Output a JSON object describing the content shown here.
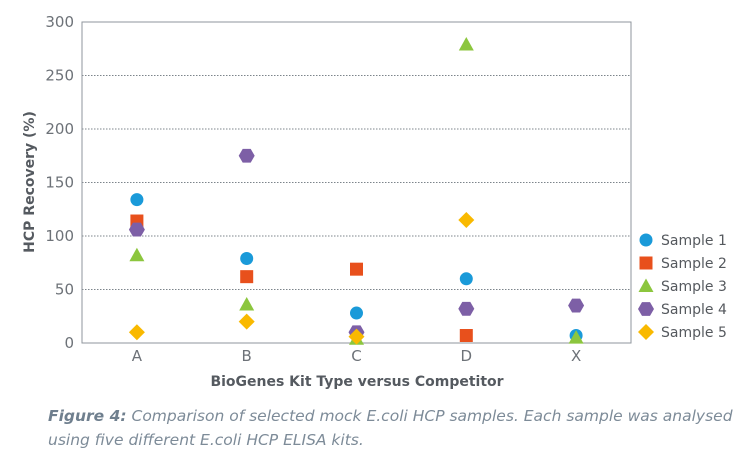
{
  "chart_data": {
    "type": "scatter",
    "categories": [
      "A",
      "B",
      "C",
      "D",
      "X"
    ],
    "xlabel": "BioGenes Kit Type versus Competitor",
    "ylabel": "HCP Recovery (%)",
    "ylim": [
      0,
      300
    ],
    "yticks": [
      0,
      50,
      100,
      150,
      200,
      250,
      300
    ],
    "grid": "horizontal-dotted",
    "legend_position": "right",
    "series": [
      {
        "name": "Sample 1",
        "marker": "circle",
        "color": "#1a9ad9",
        "values": [
          134,
          79,
          28,
          60,
          7
        ]
      },
      {
        "name": "Sample 2",
        "marker": "square",
        "color": "#e8501c",
        "values": [
          114,
          62,
          69,
          7,
          null
        ]
      },
      {
        "name": "Sample 3",
        "marker": "triangle",
        "color": "#8cc63e",
        "values": [
          82,
          36,
          4,
          279,
          5
        ]
      },
      {
        "name": "Sample 4",
        "marker": "hexagon",
        "color": "#7d5fa6",
        "values": [
          106,
          175,
          10,
          32,
          35
        ]
      },
      {
        "name": "Sample 5",
        "marker": "diamond",
        "color": "#f9b900",
        "values": [
          10,
          20,
          6,
          115,
          null
        ]
      }
    ]
  },
  "caption": {
    "lead": "Figure 4:",
    "text": " Comparison of selected mock E.coli HCP samples. Each sample was analysed using five different E.coli HCP ELISA kits."
  }
}
